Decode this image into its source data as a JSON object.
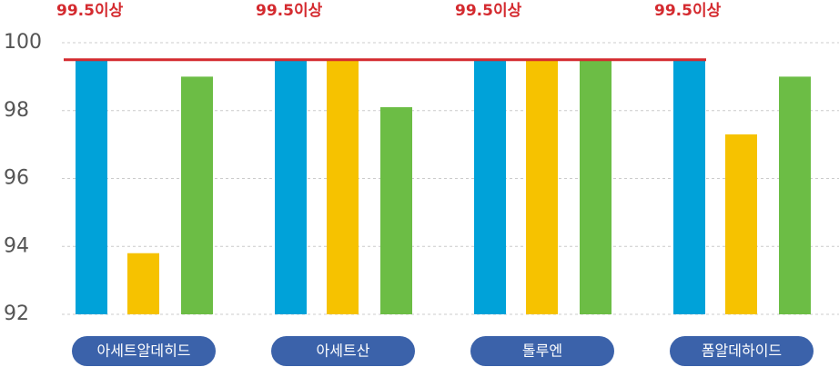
{
  "chart_data": {
    "type": "bar",
    "categories": [
      "아세트알데히드",
      "아세트산",
      "톨루엔",
      "폼알데하이드"
    ],
    "series": [
      {
        "color": "#00a2d9",
        "values": [
          99.5,
          99.5,
          99.5,
          99.5
        ]
      },
      {
        "color": "#f6c200",
        "values": [
          93.8,
          99.5,
          99.5,
          97.3
        ]
      },
      {
        "color": "#6cbd45",
        "values": [
          99.0,
          98.1,
          99.5,
          99.0
        ]
      }
    ],
    "threshold": {
      "value": 99.5,
      "color": "#d42a2f",
      "labels": [
        "99.5이상",
        "99.5이상",
        "99.5이상",
        "99.5이상"
      ]
    },
    "ylim": [
      92,
      100
    ],
    "yticks": [
      92,
      94,
      96,
      98,
      100
    ],
    "grid": true
  }
}
